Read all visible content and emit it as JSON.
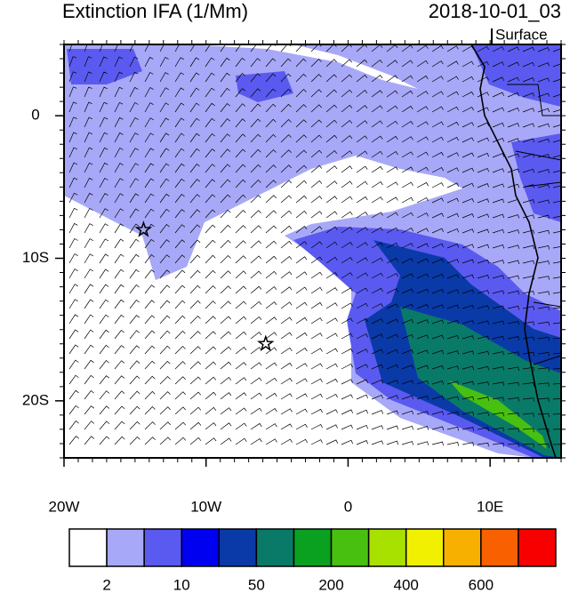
{
  "chart_data": {
    "type": "map",
    "title": "Extinction IFA (1/Mm)",
    "subtitle": "2018-10-01_03",
    "level_label": "Surface",
    "xlim": [
      -20,
      15
    ],
    "ylim": [
      -24,
      5
    ],
    "xticks": [
      {
        "value": -20,
        "label": "20W"
      },
      {
        "value": -10,
        "label": "10W"
      },
      0,
      {
        "value": 10,
        "label": "10E"
      }
    ],
    "yticks": [
      0,
      {
        "value": -10,
        "label": "10S"
      },
      {
        "value": -20,
        "label": "20S"
      }
    ],
    "markers": [
      {
        "lon": -14.4,
        "lat": -8
      },
      {
        "lon": -5.8,
        "lat": -16
      }
    ],
    "colorbar": {
      "colors": [
        "#ffffff",
        "#a8a8f8",
        "#5a5af0",
        "#0000f0",
        "#0a3aa8",
        "#0a7a68",
        "#0aa020",
        "#48c010",
        "#a8e000",
        "#f0f000",
        "#f8b000",
        "#f86000",
        "#f80000"
      ],
      "ticks": [
        2,
        10,
        50,
        200,
        400,
        600
      ]
    }
  }
}
